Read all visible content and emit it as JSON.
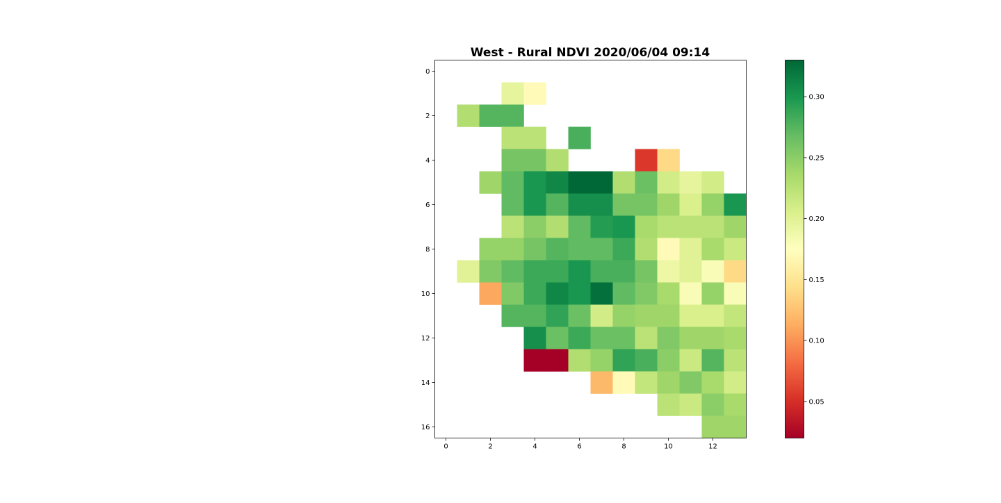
{
  "chart_data": {
    "type": "heatmap",
    "title": "West - Rural NDVI 2020/06/04 09:14",
    "xlabel": "",
    "ylabel": "",
    "xlim": [
      -0.5,
      13.5
    ],
    "ylim": [
      16.5,
      -0.5
    ],
    "x_ticks": [
      0,
      2,
      4,
      6,
      8,
      10,
      12
    ],
    "y_ticks": [
      0,
      2,
      4,
      6,
      8,
      10,
      12,
      14,
      16
    ],
    "colormap": "RdYlGn",
    "color_range": [
      0.02,
      0.33
    ],
    "colorbar_ticks": [
      0.05,
      0.1,
      0.15,
      0.2,
      0.25,
      0.3
    ],
    "colorbar_tick_labels": [
      "0.05",
      "0.10",
      "0.15",
      "0.20",
      "0.25",
      "0.30"
    ],
    "grid": false,
    "values": [
      [
        null,
        null,
        null,
        null,
        null,
        null,
        null,
        null,
        null,
        null,
        null,
        null,
        null,
        null
      ],
      [
        null,
        null,
        null,
        0.195,
        0.17,
        null,
        null,
        null,
        null,
        null,
        null,
        null,
        null,
        null
      ],
      [
        null,
        0.23,
        0.275,
        0.275,
        null,
        null,
        null,
        null,
        null,
        null,
        null,
        null,
        null,
        null
      ],
      [
        null,
        null,
        null,
        0.225,
        0.225,
        null,
        0.28,
        null,
        null,
        null,
        null,
        null,
        null,
        null
      ],
      [
        null,
        null,
        null,
        0.26,
        0.26,
        0.23,
        null,
        null,
        null,
        0.055,
        0.14,
        null,
        null,
        null
      ],
      [
        null,
        null,
        0.24,
        0.27,
        0.3,
        0.31,
        0.33,
        0.33,
        0.23,
        0.265,
        0.21,
        0.195,
        0.21,
        null
      ],
      [
        null,
        null,
        null,
        0.27,
        0.3,
        0.275,
        0.305,
        0.305,
        0.26,
        0.26,
        0.24,
        0.205,
        0.245,
        0.3
      ],
      [
        null,
        null,
        null,
        0.225,
        0.25,
        0.23,
        0.27,
        0.295,
        0.3,
        0.235,
        0.225,
        0.225,
        0.225,
        0.24
      ],
      [
        null,
        null,
        0.245,
        0.245,
        0.26,
        0.275,
        0.27,
        0.27,
        0.285,
        0.23,
        0.17,
        0.2,
        0.235,
        0.215
      ],
      [
        null,
        0.2,
        0.255,
        0.27,
        0.285,
        0.285,
        0.3,
        0.28,
        0.28,
        0.26,
        0.19,
        0.2,
        0.18,
        0.14
      ],
      [
        null,
        null,
        0.11,
        0.255,
        0.285,
        0.31,
        0.3,
        0.325,
        0.27,
        0.255,
        0.235,
        0.18,
        0.245,
        0.18
      ],
      [
        null,
        null,
        null,
        0.275,
        0.275,
        0.29,
        0.265,
        0.21,
        0.245,
        0.24,
        0.24,
        0.205,
        0.205,
        0.22
      ],
      [
        null,
        null,
        null,
        null,
        0.305,
        0.265,
        0.285,
        0.265,
        0.265,
        0.225,
        0.255,
        0.24,
        0.24,
        0.235
      ],
      [
        null,
        null,
        null,
        null,
        0.02,
        0.02,
        0.23,
        0.245,
        0.29,
        0.28,
        0.25,
        0.215,
        0.275,
        0.225
      ],
      [
        null,
        null,
        null,
        null,
        null,
        null,
        null,
        0.12,
        0.17,
        0.22,
        0.24,
        0.255,
        0.235,
        0.21
      ],
      [
        null,
        null,
        null,
        null,
        null,
        null,
        null,
        null,
        null,
        null,
        0.225,
        0.215,
        0.25,
        0.235
      ],
      [
        null,
        null,
        null,
        null,
        null,
        null,
        null,
        null,
        null,
        null,
        null,
        null,
        0.24,
        0.24
      ]
    ]
  }
}
